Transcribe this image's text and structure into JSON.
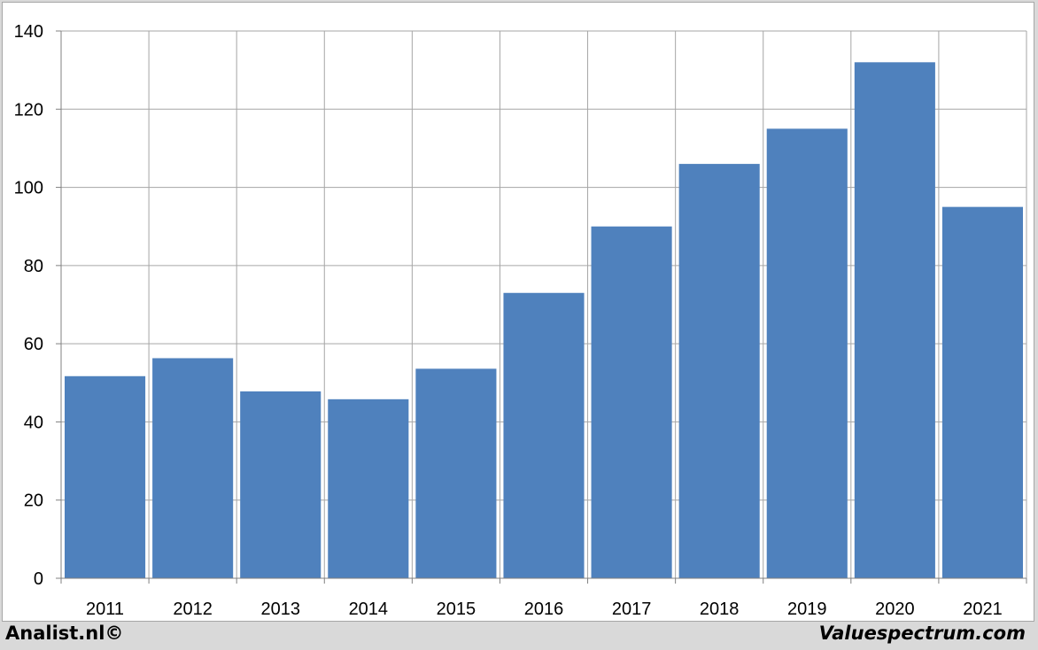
{
  "chart_data": {
    "type": "bar",
    "categories": [
      "2011",
      "2012",
      "2013",
      "2014",
      "2015",
      "2016",
      "2017",
      "2018",
      "2019",
      "2020",
      "2021"
    ],
    "values": [
      51.7,
      56.3,
      47.8,
      45.8,
      53.6,
      73.0,
      90.0,
      106.0,
      115.0,
      132.0,
      95.0
    ],
    "ylim": [
      0,
      140
    ],
    "yticks": [
      0,
      20,
      40,
      60,
      80,
      100,
      120,
      140
    ],
    "grid": true,
    "bar_color": "#4f81bd",
    "grid_color": "#a6a6a6",
    "title": "",
    "xlabel": "",
    "ylabel": ""
  },
  "footer": {
    "left": "Analist.nl©",
    "right": "Valuespectrum.com"
  }
}
